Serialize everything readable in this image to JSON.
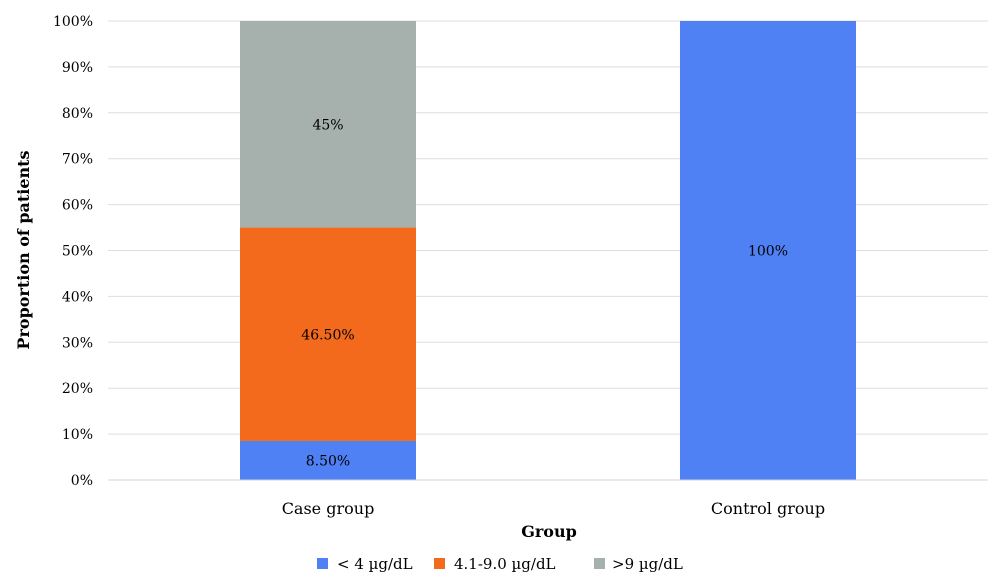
{
  "chart_data": {
    "type": "bar",
    "stacked": true,
    "categories": [
      "Case group",
      "Control group"
    ],
    "series": [
      {
        "name": "< 4 µg/dL",
        "values": [
          8.5,
          100
        ],
        "labels": [
          "8.50%",
          "100%"
        ],
        "color": "#4f81f5"
      },
      {
        "name": "4.1-9.0 µg/dL",
        "values": [
          46.5,
          0
        ],
        "labels": [
          "46.50%",
          ""
        ],
        "color": "#f46a1d"
      },
      {
        "name": ">9 µg/dL",
        "values": [
          45,
          0
        ],
        "labels": [
          "45%",
          ""
        ],
        "color": "#a6b0ad"
      }
    ],
    "xlabel": "Group",
    "ylabel": "Proportion of patients",
    "ylim": [
      0,
      100
    ],
    "yticks": [
      0,
      10,
      20,
      30,
      40,
      50,
      60,
      70,
      80,
      90,
      100
    ],
    "ytick_labels": [
      "0%",
      "10%",
      "20%",
      "30%",
      "40%",
      "50%",
      "60%",
      "70%",
      "80%",
      "90%",
      "100%"
    ],
    "grid": true,
    "legend": "bottom"
  }
}
